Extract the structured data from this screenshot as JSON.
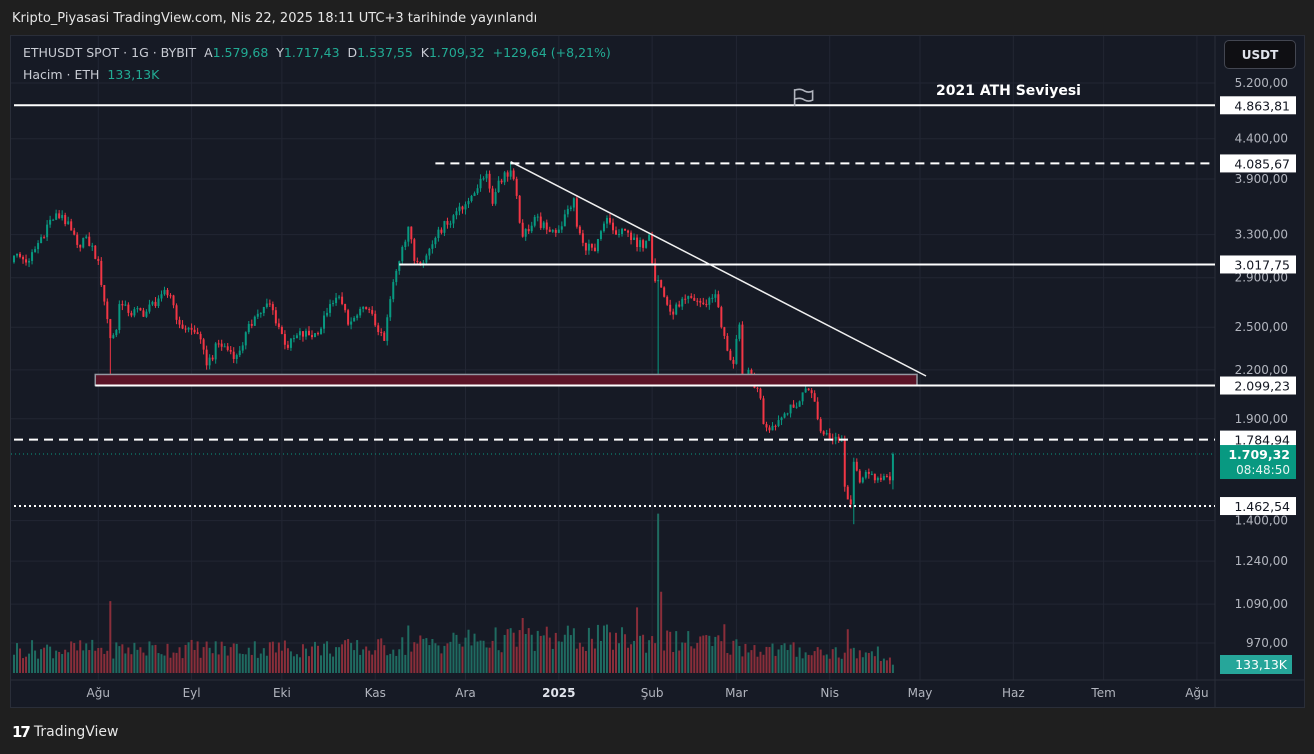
{
  "published": "Kripto_Piyasasi TradingView.com, Nis 22, 2025 18:11 UTC+3 tarihinde yayınlandı",
  "legend": {
    "symbol": "ETHUSDT SPOT · 1G · BYBIT",
    "open_label": "A",
    "open": "1.579,68",
    "high_label": "Y",
    "high": "1.717,43",
    "low_label": "D",
    "low": "1.537,55",
    "close_label": "K",
    "close": "1.709,32",
    "change": "+129,64 (+8,21%)",
    "volume_label": "Hacim · ETH",
    "volume": "133,13K"
  },
  "currency_button": "USDT",
  "annotation_text": "2021 ATH Seviyesi",
  "footer_brand": "TradingView",
  "colors": {
    "up": "#089981",
    "down": "#f23645",
    "vol_up": "#1f6b61",
    "vol_down": "#8a2e3a",
    "zone": "#5b1427",
    "current_price": "#089981",
    "volume_badge": "#26a69a"
  },
  "icons": {
    "flag": "flag-icon",
    "logo": "tradingview-logo"
  },
  "chart_data": {
    "type": "candlestick",
    "symbol": "ETHUSDT",
    "y_scale": "log",
    "ylim": [
      930,
      5500
    ],
    "grid": true,
    "y_ticks": [
      {
        "value": 5200,
        "label": "5.200,00"
      },
      {
        "value": 4400,
        "label": "4.400,00"
      },
      {
        "value": 3900,
        "label": "3.900,00"
      },
      {
        "value": 3300,
        "label": "3.300,00"
      },
      {
        "value": 2900,
        "label": "2.900,00"
      },
      {
        "value": 2500,
        "label": "2.500,00"
      },
      {
        "value": 2200,
        "label": "2.200,00"
      },
      {
        "value": 1900,
        "label": "1.900,00"
      },
      {
        "value": 1400,
        "label": "1.400,00"
      },
      {
        "value": 1240,
        "label": "1.240,00"
      },
      {
        "value": 1090,
        "label": "1.090,00"
      },
      {
        "value": 970,
        "label": "970,00"
      }
    ],
    "x_ticks": [
      {
        "date": "2024-08-01",
        "label": "Ağu"
      },
      {
        "date": "2024-09-01",
        "label": "Eyl"
      },
      {
        "date": "2024-10-01",
        "label": "Eki"
      },
      {
        "date": "2024-11-01",
        "label": "Kas"
      },
      {
        "date": "2024-12-01",
        "label": "Ara"
      },
      {
        "date": "2025-01-01",
        "label": "2025",
        "bold": true
      },
      {
        "date": "2025-02-01",
        "label": "Şub"
      },
      {
        "date": "2025-03-01",
        "label": "Mar"
      },
      {
        "date": "2025-04-01",
        "label": "Nis"
      },
      {
        "date": "2025-05-01",
        "label": "May"
      },
      {
        "date": "2025-06-01",
        "label": "Haz"
      },
      {
        "date": "2025-07-01",
        "label": "Tem"
      },
      {
        "date": "2025-08-01",
        "label": "Ağu"
      }
    ],
    "closes": [
      [
        "2024-07-04",
        3100
      ],
      [
        "2024-07-09",
        3050
      ],
      [
        "2024-07-16",
        3450
      ],
      [
        "2024-07-20",
        3500
      ],
      [
        "2024-07-25",
        3200
      ],
      [
        "2024-07-28",
        3280
      ],
      [
        "2024-08-01",
        3050
      ],
      [
        "2024-08-03",
        2700
      ],
      [
        "2024-08-05",
        2420
      ],
      [
        "2024-08-07",
        2480
      ],
      [
        "2024-08-08",
        2680
      ],
      [
        "2024-08-11",
        2610
      ],
      [
        "2024-08-17",
        2620
      ],
      [
        "2024-08-22",
        2760
      ],
      [
        "2024-08-25",
        2750
      ],
      [
        "2024-08-28",
        2520
      ],
      [
        "2024-09-03",
        2450
      ],
      [
        "2024-09-06",
        2230
      ],
      [
        "2024-09-10",
        2380
      ],
      [
        "2024-09-16",
        2300
      ],
      [
        "2024-09-22",
        2580
      ],
      [
        "2024-09-27",
        2680
      ],
      [
        "2024-10-01",
        2450
      ],
      [
        "2024-10-03",
        2350
      ],
      [
        "2024-10-06",
        2440
      ],
      [
        "2024-10-13",
        2450
      ],
      [
        "2024-10-16",
        2610
      ],
      [
        "2024-10-20",
        2740
      ],
      [
        "2024-10-23",
        2520
      ],
      [
        "2024-10-29",
        2640
      ],
      [
        "2024-11-03",
        2460
      ],
      [
        "2024-11-04",
        2400
      ],
      [
        "2024-11-06",
        2720
      ],
      [
        "2024-11-08",
        2960
      ],
      [
        "2024-11-10",
        3180
      ],
      [
        "2024-11-12",
        3380
      ],
      [
        "2024-11-14",
        3050
      ],
      [
        "2024-11-18",
        3100
      ],
      [
        "2024-11-22",
        3350
      ],
      [
        "2024-11-25",
        3400
      ],
      [
        "2024-11-29",
        3590
      ],
      [
        "2024-12-02",
        3650
      ],
      [
        "2024-12-06",
        3900
      ],
      [
        "2024-12-08",
        3960
      ],
      [
        "2024-12-10",
        3620
      ],
      [
        "2024-12-12",
        3880
      ],
      [
        "2024-12-16",
        4000
      ],
      [
        "2024-12-17",
        3900
      ],
      [
        "2024-12-19",
        3420
      ],
      [
        "2024-12-20",
        3280
      ],
      [
        "2024-12-24",
        3480
      ],
      [
        "2024-12-28",
        3350
      ],
      [
        "2025-01-01",
        3350
      ],
      [
        "2025-01-06",
        3680
      ],
      [
        "2025-01-07",
        3380
      ],
      [
        "2025-01-09",
        3220
      ],
      [
        "2025-01-13",
        3140
      ],
      [
        "2025-01-17",
        3470
      ],
      [
        "2025-01-20",
        3300
      ],
      [
        "2025-01-24",
        3320
      ],
      [
        "2025-01-27",
        3180
      ],
      [
        "2025-01-30",
        3240
      ],
      [
        "2025-01-31",
        3300
      ],
      [
        "2025-02-02",
        2870
      ],
      [
        "2025-02-03",
        2880
      ],
      [
        "2025-02-07",
        2620
      ],
      [
        "2025-02-10",
        2660
      ],
      [
        "2025-02-14",
        2730
      ],
      [
        "2025-02-18",
        2680
      ],
      [
        "2025-02-22",
        2760
      ],
      [
        "2025-02-24",
        2500
      ],
      [
        "2025-02-26",
        2330
      ],
      [
        "2025-02-28",
        2240
      ],
      [
        "2025-03-02",
        2520
      ],
      [
        "2025-03-03",
        2150
      ],
      [
        "2025-03-05",
        2200
      ],
      [
        "2025-03-09",
        2020
      ],
      [
        "2025-03-10",
        1870
      ],
      [
        "2025-03-13",
        1860
      ],
      [
        "2025-03-17",
        1930
      ],
      [
        "2025-03-21",
        1970
      ],
      [
        "2025-03-24",
        2080
      ],
      [
        "2025-03-25",
        2070
      ],
      [
        "2025-03-27",
        2000
      ],
      [
        "2025-03-29",
        1830
      ],
      [
        "2025-03-31",
        1820
      ],
      [
        "2025-04-03",
        1800
      ],
      [
        "2025-04-05",
        1790
      ],
      [
        "2025-04-06",
        1550
      ],
      [
        "2025-04-08",
        1470
      ],
      [
        "2025-04-09",
        1670
      ],
      [
        "2025-04-11",
        1570
      ],
      [
        "2025-04-13",
        1620
      ],
      [
        "2025-04-16",
        1580
      ],
      [
        "2025-04-19",
        1600
      ],
      [
        "2025-04-21",
        1580
      ],
      [
        "2025-04-22",
        1709.32
      ]
    ],
    "last_candle": {
      "date": "2025-04-22",
      "open": 1579.68,
      "high": 1717.43,
      "low": 1537.55,
      "close": 1709.32
    },
    "wicks": [
      {
        "date": "2024-08-05",
        "low": 2110
      },
      {
        "date": "2024-12-16",
        "high": 4107
      },
      {
        "date": "2025-02-03",
        "low": 2120
      },
      {
        "date": "2025-04-09",
        "low": 1385
      }
    ],
    "volume_unit": "K ETH",
    "volume_levels": [
      [
        "2024-07-04",
        380
      ],
      [
        "2024-11-01",
        400
      ],
      [
        "2024-12-01",
        520
      ],
      [
        "2025-01-15",
        560
      ],
      [
        "2025-02-20",
        480
      ],
      [
        "2025-03-10",
        380
      ],
      [
        "2025-04-21",
        300
      ],
      [
        "2025-04-22",
        133.13
      ]
    ],
    "volume_spikes": [
      {
        "date": "2024-08-05",
        "value": 1150
      },
      {
        "date": "2024-11-12",
        "value": 760
      },
      {
        "date": "2024-12-20",
        "value": 880
      },
      {
        "date": "2025-01-27",
        "value": 1050
      },
      {
        "date": "2025-02-03",
        "value": 2550
      },
      {
        "date": "2025-02-04",
        "value": 1300
      },
      {
        "date": "2025-02-25",
        "value": 780
      },
      {
        "date": "2025-04-07",
        "value": 700
      }
    ],
    "levels": [
      {
        "price": 4863.81,
        "label": "4.863,81",
        "style": "solid",
        "from": "2024-07-04"
      },
      {
        "price": 4085.67,
        "label": "4.085,67",
        "style": "dashed",
        "from": "2024-11-21"
      },
      {
        "price": 3017.75,
        "label": "3.017,75",
        "style": "solid",
        "from": "2024-11-09"
      },
      {
        "price": 2099.23,
        "label": "2.099,23",
        "style": "solid",
        "from": "2024-07-31"
      },
      {
        "price": 1784.94,
        "label": "1.784,94",
        "style": "dashed",
        "from": "2024-07-04"
      },
      {
        "price": 1462.54,
        "label": "1.462,54",
        "style": "dotted",
        "from": "2024-07-04"
      }
    ],
    "zone": {
      "from": "2024-07-31",
      "to": "2025-04-30",
      "low": 2099.23,
      "high": 2170
    },
    "trendline": {
      "from": {
        "date": "2024-12-16",
        "price": 4107
      },
      "to": {
        "date": "2025-05-03",
        "price": 2160
      }
    },
    "flag": {
      "date": "2025-03-23",
      "price": 5000
    },
    "current_price": {
      "value": 1709.32,
      "label": "1.709,32",
      "countdown": "08:48:50"
    }
  }
}
